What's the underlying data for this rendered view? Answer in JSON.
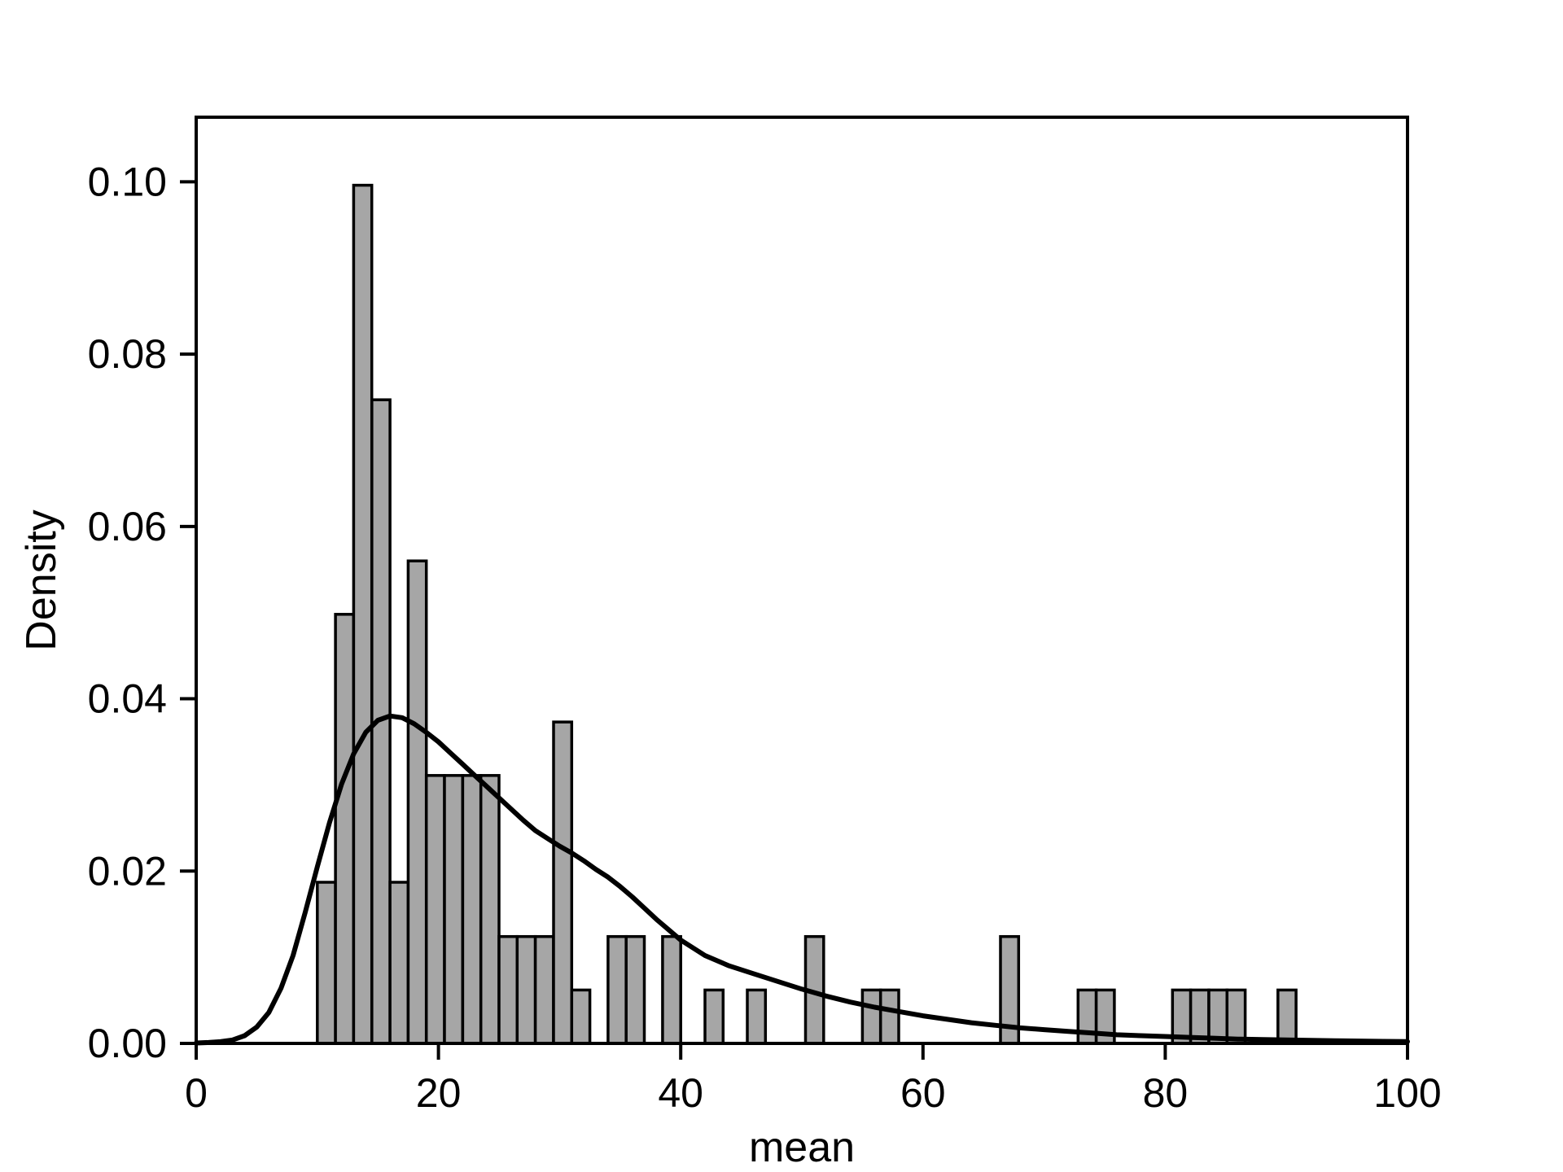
{
  "chart_data": {
    "type": "bar",
    "subtype": "histogram_with_density_curve",
    "title": "",
    "xlabel": "mean",
    "ylabel": "Density",
    "xlim": [
      0,
      100
    ],
    "ylim": [
      0,
      0.1075
    ],
    "grid": false,
    "legend": null,
    "xticks": [
      {
        "value": 0,
        "label": "0"
      },
      {
        "value": 20,
        "label": "20"
      },
      {
        "value": 40,
        "label": "40"
      },
      {
        "value": 60,
        "label": "60"
      },
      {
        "value": 80,
        "label": "80"
      },
      {
        "value": 100,
        "label": "100"
      }
    ],
    "yticks": [
      {
        "value": 0.0,
        "label": "0.00"
      },
      {
        "value": 0.02,
        "label": "0.02"
      },
      {
        "value": 0.04,
        "label": "0.04"
      },
      {
        "value": 0.06,
        "label": "0.06"
      },
      {
        "value": 0.08,
        "label": "0.08"
      },
      {
        "value": 0.1,
        "label": "0.10"
      }
    ],
    "colors": {
      "bar_fill": "#a6a6a6",
      "bar_edge": "#000000",
      "curve": "#000000",
      "axis": "#000000",
      "background": "#ffffff"
    },
    "histogram": {
      "bin_width": 1.5,
      "bars": [
        {
          "x0": 10.0,
          "count": 3,
          "density": 0.0187
        },
        {
          "x0": 11.5,
          "count": 8,
          "density": 0.0498
        },
        {
          "x0": 13.0,
          "count": 16,
          "density": 0.0996
        },
        {
          "x0": 14.5,
          "count": 12,
          "density": 0.0747
        },
        {
          "x0": 16.0,
          "count": 3,
          "density": 0.0187
        },
        {
          "x0": 17.5,
          "count": 9,
          "density": 0.056
        },
        {
          "x0": 19.0,
          "count": 5,
          "density": 0.0311
        },
        {
          "x0": 20.5,
          "count": 5,
          "density": 0.0311
        },
        {
          "x0": 22.0,
          "count": 5,
          "density": 0.0311
        },
        {
          "x0": 23.5,
          "count": 5,
          "density": 0.0311
        },
        {
          "x0": 25.0,
          "count": 2,
          "density": 0.0124
        },
        {
          "x0": 26.5,
          "count": 2,
          "density": 0.0124
        },
        {
          "x0": 28.0,
          "count": 2,
          "density": 0.0124
        },
        {
          "x0": 29.5,
          "count": 6,
          "density": 0.0373
        },
        {
          "x0": 31.0,
          "count": 1,
          "density": 0.0062
        },
        {
          "x0": 34.0,
          "count": 2,
          "density": 0.0124
        },
        {
          "x0": 35.5,
          "count": 2,
          "density": 0.0124
        },
        {
          "x0": 38.5,
          "count": 2,
          "density": 0.0124
        },
        {
          "x0": 42.0,
          "count": 1,
          "density": 0.0062
        },
        {
          "x0": 45.5,
          "count": 1,
          "density": 0.0062
        },
        {
          "x0": 50.3,
          "count": 2,
          "density": 0.0124
        },
        {
          "x0": 55.0,
          "count": 1,
          "density": 0.0062
        },
        {
          "x0": 56.5,
          "count": 1,
          "density": 0.0062
        },
        {
          "x0": 66.4,
          "count": 2,
          "density": 0.0124
        },
        {
          "x0": 72.8,
          "count": 1,
          "density": 0.0062
        },
        {
          "x0": 74.3,
          "count": 1,
          "density": 0.0062
        },
        {
          "x0": 80.6,
          "count": 1,
          "density": 0.0062
        },
        {
          "x0": 82.1,
          "count": 1,
          "density": 0.0062
        },
        {
          "x0": 83.6,
          "count": 1,
          "density": 0.0062
        },
        {
          "x0": 85.1,
          "count": 1,
          "density": 0.0062
        },
        {
          "x0": 89.3,
          "count": 1,
          "density": 0.0062
        }
      ]
    },
    "curve": {
      "name": "fitted density curve",
      "points": [
        [
          0,
          5e-05
        ],
        [
          1,
          0.0001
        ],
        [
          2,
          0.0002
        ],
        [
          3,
          0.0004
        ],
        [
          4,
          0.0009
        ],
        [
          5,
          0.0019
        ],
        [
          6,
          0.0036
        ],
        [
          7,
          0.0064
        ],
        [
          8,
          0.0102
        ],
        [
          9,
          0.0152
        ],
        [
          10,
          0.0205
        ],
        [
          11,
          0.0256
        ],
        [
          12,
          0.0301
        ],
        [
          13,
          0.0336
        ],
        [
          14,
          0.0361
        ],
        [
          15,
          0.0375
        ],
        [
          16,
          0.038
        ],
        [
          17,
          0.0378
        ],
        [
          18,
          0.0371
        ],
        [
          19,
          0.0361
        ],
        [
          20,
          0.035
        ],
        [
          21,
          0.0337
        ],
        [
          22,
          0.0324
        ],
        [
          23,
          0.0311
        ],
        [
          24,
          0.0298
        ],
        [
          25,
          0.0285
        ],
        [
          26,
          0.0272
        ],
        [
          27,
          0.0259
        ],
        [
          28,
          0.0247
        ],
        [
          29,
          0.0238
        ],
        [
          30,
          0.0229
        ],
        [
          31,
          0.0221
        ],
        [
          32,
          0.0212
        ],
        [
          33,
          0.0202
        ],
        [
          34,
          0.0193
        ],
        [
          35,
          0.0182
        ],
        [
          36,
          0.017
        ],
        [
          37,
          0.0157
        ],
        [
          38,
          0.0144
        ],
        [
          39,
          0.0132
        ],
        [
          40,
          0.012
        ],
        [
          42,
          0.0102
        ],
        [
          44,
          0.009
        ],
        [
          46,
          0.0081
        ],
        [
          48,
          0.0072
        ],
        [
          50,
          0.0063
        ],
        [
          52,
          0.0055
        ],
        [
          54,
          0.0048
        ],
        [
          56,
          0.0042
        ],
        [
          58,
          0.0037
        ],
        [
          60,
          0.0032
        ],
        [
          62,
          0.0028
        ],
        [
          64,
          0.0024
        ],
        [
          66,
          0.0021
        ],
        [
          68,
          0.0018
        ],
        [
          70,
          0.0016
        ],
        [
          72,
          0.0014
        ],
        [
          74,
          0.0012
        ],
        [
          76,
          0.001
        ],
        [
          78,
          0.0009
        ],
        [
          80,
          0.0008
        ],
        [
          82,
          0.0007
        ],
        [
          84,
          0.0006
        ],
        [
          86,
          0.0005
        ],
        [
          88,
          0.00045
        ],
        [
          90,
          0.0004
        ],
        [
          92,
          0.00035
        ],
        [
          94,
          0.0003
        ],
        [
          96,
          0.00027
        ],
        [
          98,
          0.00024
        ],
        [
          100,
          0.00022
        ]
      ]
    }
  }
}
